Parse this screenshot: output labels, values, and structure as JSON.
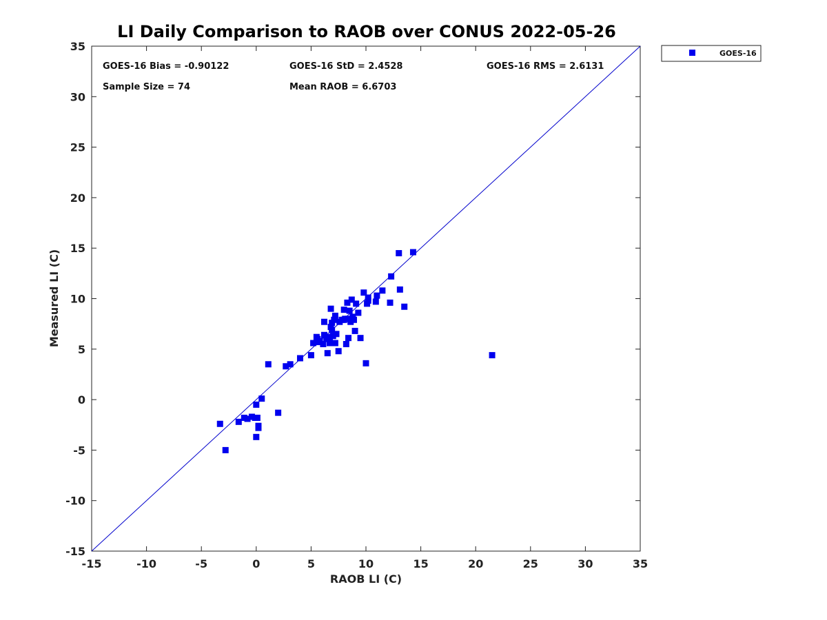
{
  "chart_data": {
    "type": "scatter",
    "title": "LI Daily Comparison to RAOB over CONUS 2022-05-26",
    "xlabel": "RAOB LI (C)",
    "ylabel": "Measured LI (C)",
    "xlim": [
      -15,
      35
    ],
    "ylim": [
      -15,
      35
    ],
    "xticks": [
      -15,
      -10,
      -5,
      0,
      5,
      10,
      15,
      20,
      25,
      30,
      35
    ],
    "yticks": [
      -15,
      -10,
      -5,
      0,
      5,
      10,
      15,
      20,
      25,
      30,
      35
    ],
    "grid": false,
    "legend_position": "outside-top-right",
    "reference_line": {
      "name": "1:1 line",
      "from": [
        -15,
        -15
      ],
      "to": [
        35,
        35
      ],
      "color": "#0000cc"
    },
    "annotations": {
      "bias": "GOES-16 Bias = -0.90122",
      "std": "GOES-16 StD = 2.4528",
      "rms": "GOES-16 RMS = 2.6131",
      "sample_size": "Sample Size = 74",
      "mean_raob": "Mean RAOB = 6.6703"
    },
    "series": [
      {
        "name": "GOES-16",
        "color": "#0000ee",
        "marker": "square",
        "points": [
          [
            -3.3,
            -2.4
          ],
          [
            -2.8,
            -5.0
          ],
          [
            -1.6,
            -2.2
          ],
          [
            -1.1,
            -1.8
          ],
          [
            -0.8,
            -1.9
          ],
          [
            -0.4,
            -1.7
          ],
          [
            -0.1,
            -1.8
          ],
          [
            0.0,
            -0.5
          ],
          [
            0.1,
            -1.8
          ],
          [
            0.2,
            -2.8
          ],
          [
            0.0,
            -3.7
          ],
          [
            0.2,
            -2.6
          ],
          [
            0.5,
            0.1
          ],
          [
            1.1,
            3.5
          ],
          [
            2.0,
            -1.3
          ],
          [
            2.7,
            3.3
          ],
          [
            3.1,
            3.5
          ],
          [
            4.0,
            4.1
          ],
          [
            5.0,
            4.4
          ],
          [
            5.2,
            5.6
          ],
          [
            5.5,
            6.2
          ],
          [
            5.7,
            5.7
          ],
          [
            5.6,
            6.0
          ],
          [
            6.1,
            5.5
          ],
          [
            6.2,
            6.4
          ],
          [
            6.2,
            7.7
          ],
          [
            6.5,
            4.6
          ],
          [
            6.7,
            5.6
          ],
          [
            6.7,
            6.2
          ],
          [
            6.8,
            9.0
          ],
          [
            6.8,
            7.2
          ],
          [
            6.9,
            7.6
          ],
          [
            7.0,
            6.3
          ],
          [
            7.1,
            7.9
          ],
          [
            7.2,
            5.6
          ],
          [
            7.2,
            8.3
          ],
          [
            7.3,
            6.5
          ],
          [
            7.5,
            4.8
          ],
          [
            7.6,
            7.7
          ],
          [
            8.0,
            7.9
          ],
          [
            8.0,
            8.9
          ],
          [
            8.2,
            5.5
          ],
          [
            8.3,
            9.6
          ],
          [
            8.4,
            6.1
          ],
          [
            8.4,
            8.0
          ],
          [
            8.5,
            8.8
          ],
          [
            8.6,
            7.7
          ],
          [
            8.7,
            9.9
          ],
          [
            8.8,
            8.2
          ],
          [
            8.9,
            7.9
          ],
          [
            9.0,
            6.8
          ],
          [
            9.1,
            9.5
          ],
          [
            9.3,
            8.6
          ],
          [
            9.5,
            6.1
          ],
          [
            9.8,
            10.6
          ],
          [
            10.0,
            3.6
          ],
          [
            10.1,
            9.5
          ],
          [
            10.2,
            9.8
          ],
          [
            10.2,
            10.1
          ],
          [
            10.9,
            9.7
          ],
          [
            11.0,
            10.3
          ],
          [
            11.5,
            10.8
          ],
          [
            12.2,
            9.6
          ],
          [
            12.3,
            12.2
          ],
          [
            13.0,
            14.5
          ],
          [
            13.1,
            10.9
          ],
          [
            13.5,
            9.2
          ],
          [
            14.3,
            14.6
          ],
          [
            21.5,
            4.4
          ],
          [
            6.4,
            6.0
          ],
          [
            7.8,
            7.9
          ],
          [
            8.1,
            8.0
          ],
          [
            5.8,
            5.8
          ],
          [
            6.9,
            6.9
          ]
        ]
      }
    ]
  }
}
